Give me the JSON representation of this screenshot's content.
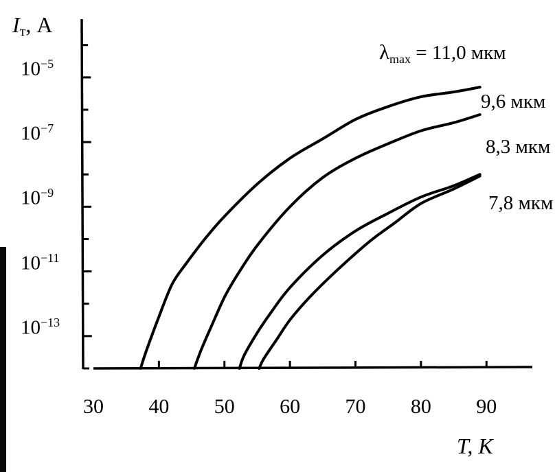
{
  "chart_data": {
    "type": "line",
    "xlabel": "T, K",
    "ylabel": {
      "symbol": "I",
      "subscript": "т",
      "unit": ", A"
    },
    "xlim": [
      30,
      97
    ],
    "ylim_log10": [
      -14,
      -3.2
    ],
    "y_scale": "log",
    "x_ticks": [
      "30",
      "40",
      "50",
      "60",
      "70",
      "80",
      "90"
    ],
    "y_ticks": [
      {
        "base": "10",
        "exp": "−5",
        "value": -5
      },
      {
        "base": "10",
        "exp": "−7",
        "value": -7
      },
      {
        "base": "10",
        "exp": "−9",
        "value": -9
      },
      {
        "base": "10",
        "exp": "−11",
        "value": -11
      },
      {
        "base": "10",
        "exp": "−13",
        "value": -13
      }
    ],
    "legend_prefix": {
      "symbol": "λ",
      "subscript": "max",
      "eq": " = "
    },
    "series": [
      {
        "name": "11,0 мкм",
        "label_prefix": true,
        "points": [
          [
            37.2,
            -14.0
          ],
          [
            38,
            -13.5
          ],
          [
            40,
            -12.4
          ],
          [
            42,
            -11.4
          ],
          [
            44,
            -10.8
          ],
          [
            47,
            -10.0
          ],
          [
            50,
            -9.3
          ],
          [
            55,
            -8.3
          ],
          [
            60,
            -7.5
          ],
          [
            65,
            -6.9
          ],
          [
            70,
            -6.3
          ],
          [
            75,
            -5.9
          ],
          [
            80,
            -5.6
          ],
          [
            85,
            -5.45
          ],
          [
            89,
            -5.3
          ]
        ]
      },
      {
        "name": "9,6 мкм",
        "points": [
          [
            45.4,
            -14.0
          ],
          [
            46.5,
            -13.4
          ],
          [
            48,
            -12.7
          ],
          [
            50,
            -11.8
          ],
          [
            52,
            -11.1
          ],
          [
            55,
            -10.2
          ],
          [
            60,
            -9.0
          ],
          [
            65,
            -8.1
          ],
          [
            70,
            -7.5
          ],
          [
            75,
            -7.05
          ],
          [
            80,
            -6.65
          ],
          [
            85,
            -6.4
          ],
          [
            89,
            -6.15
          ]
        ]
      },
      {
        "name": "8,3 мкм",
        "points": [
          [
            52.3,
            -14.0
          ],
          [
            53,
            -13.6
          ],
          [
            55,
            -12.9
          ],
          [
            57,
            -12.3
          ],
          [
            60,
            -11.5
          ],
          [
            65,
            -10.5
          ],
          [
            70,
            -9.75
          ],
          [
            75,
            -9.2
          ],
          [
            80,
            -8.7
          ],
          [
            85,
            -8.35
          ],
          [
            89,
            -8.0
          ]
        ]
      },
      {
        "name": "7,8 мкм",
        "points": [
          [
            55.3,
            -14.0
          ],
          [
            56,
            -13.7
          ],
          [
            58,
            -13.1
          ],
          [
            60,
            -12.5
          ],
          [
            63,
            -11.8
          ],
          [
            67,
            -11.0
          ],
          [
            72,
            -10.1
          ],
          [
            76,
            -9.5
          ],
          [
            80,
            -8.9
          ],
          [
            85,
            -8.45
          ],
          [
            89,
            -8.05
          ]
        ]
      }
    ]
  }
}
